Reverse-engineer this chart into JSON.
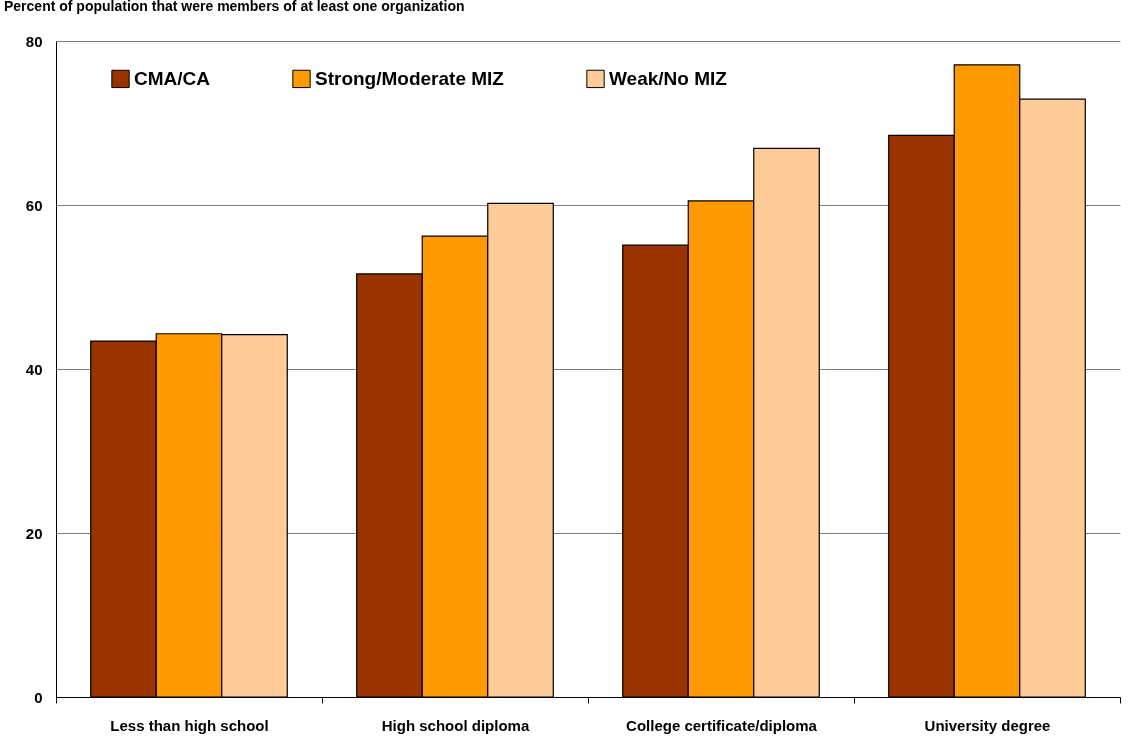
{
  "chart_data": {
    "type": "bar",
    "title": "Percent of population that were members of at least one organization",
    "categories": [
      "Less than high school",
      "High school diploma",
      "College certificate/diploma",
      "University degree"
    ],
    "series": [
      {
        "name": "CMA/CA",
        "color": "#993300",
        "values": [
          43.4,
          51.6,
          55.1,
          68.5
        ]
      },
      {
        "name": "Strong/Moderate MIZ",
        "color": "#ff9900",
        "values": [
          44.3,
          56.2,
          60.5,
          77.1
        ]
      },
      {
        "name": "Weak/No MIZ",
        "color": "#ffcc99",
        "values": [
          44.2,
          60.2,
          66.9,
          72.9
        ]
      }
    ],
    "ylim": [
      0,
      80
    ],
    "yticks": [
      0,
      20,
      40,
      60,
      80
    ],
    "grid": "y",
    "legend": "top left"
  }
}
